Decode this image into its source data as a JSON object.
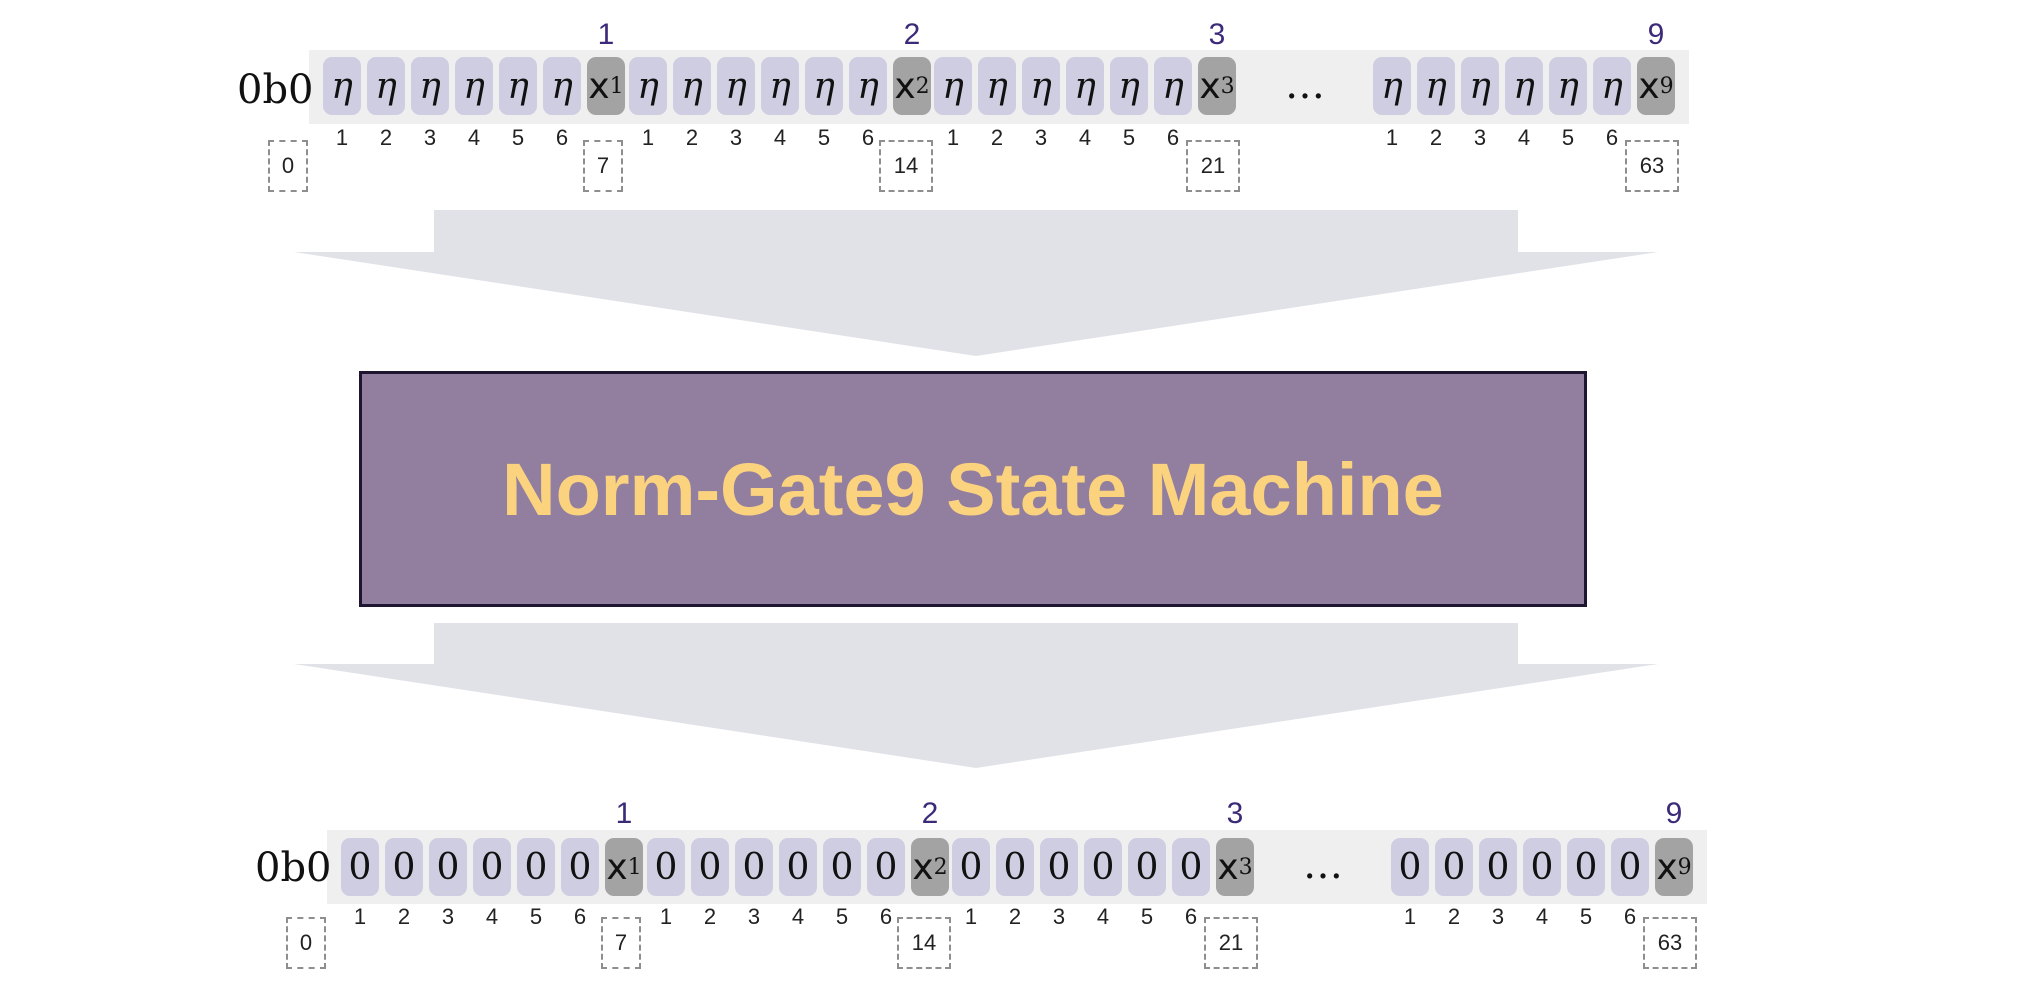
{
  "title": "",
  "colors": {
    "eta_cell": "#cfcde1",
    "x_cell": "#a3a3a3",
    "row_background": "#efefef",
    "group_label": "#3c2a79",
    "machine_fill": "#927e9f",
    "machine_border": "#1e1530",
    "machine_text": "#fbd37f",
    "arrow": "#e1e2e7"
  },
  "machine": {
    "label": "Norm-Gate9 State Machine"
  },
  "input_row": {
    "prefix": "0b0",
    "fill_symbol": "η",
    "value_symbol": "x",
    "groups": [
      "1",
      "2",
      "3",
      "9"
    ],
    "group_subscripts": [
      "1",
      "2",
      "3",
      "9"
    ],
    "positions": [
      "1",
      "2",
      "3",
      "4",
      "5",
      "6"
    ],
    "ellipsis": "…",
    "bit_indices": [
      "0",
      "7",
      "14",
      "21",
      "63"
    ]
  },
  "output_row": {
    "prefix": "0b0",
    "fill_symbol": "0",
    "value_symbol": "x",
    "groups": [
      "1",
      "2",
      "3",
      "9"
    ],
    "group_subscripts": [
      "1",
      "2",
      "3",
      "9"
    ],
    "positions": [
      "1",
      "2",
      "3",
      "4",
      "5",
      "6"
    ],
    "ellipsis": "…",
    "bit_indices": [
      "0",
      "7",
      "14",
      "21",
      "63"
    ]
  }
}
